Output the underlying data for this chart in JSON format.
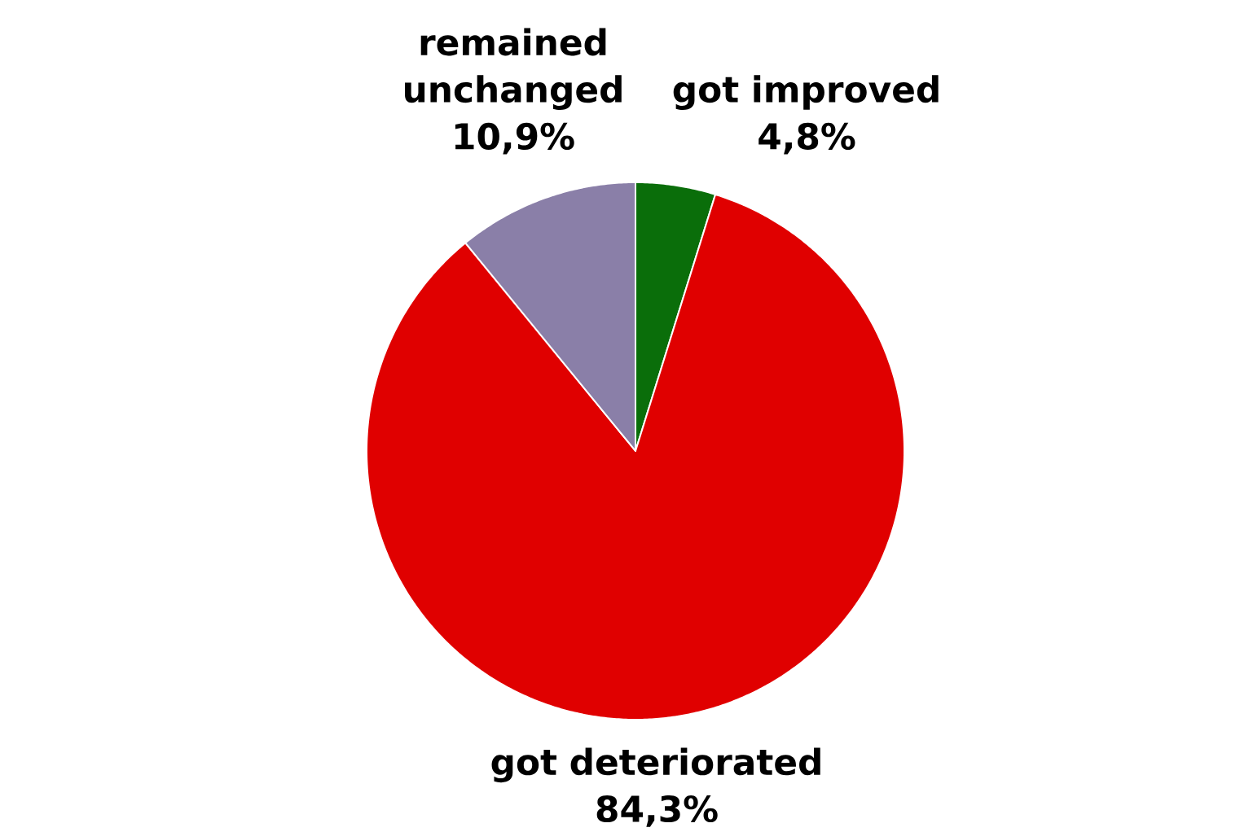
{
  "chart_data": {
    "type": "pie",
    "categories": [
      "got improved",
      "got deteriorated",
      "remained unchanged"
    ],
    "values": [
      4.8,
      84.3,
      10.9
    ],
    "colors": [
      "#0a6e0a",
      "#e00000",
      "#8a7fa8"
    ],
    "value_labels": [
      "4,8%",
      "84,3%",
      "10,9%"
    ]
  }
}
